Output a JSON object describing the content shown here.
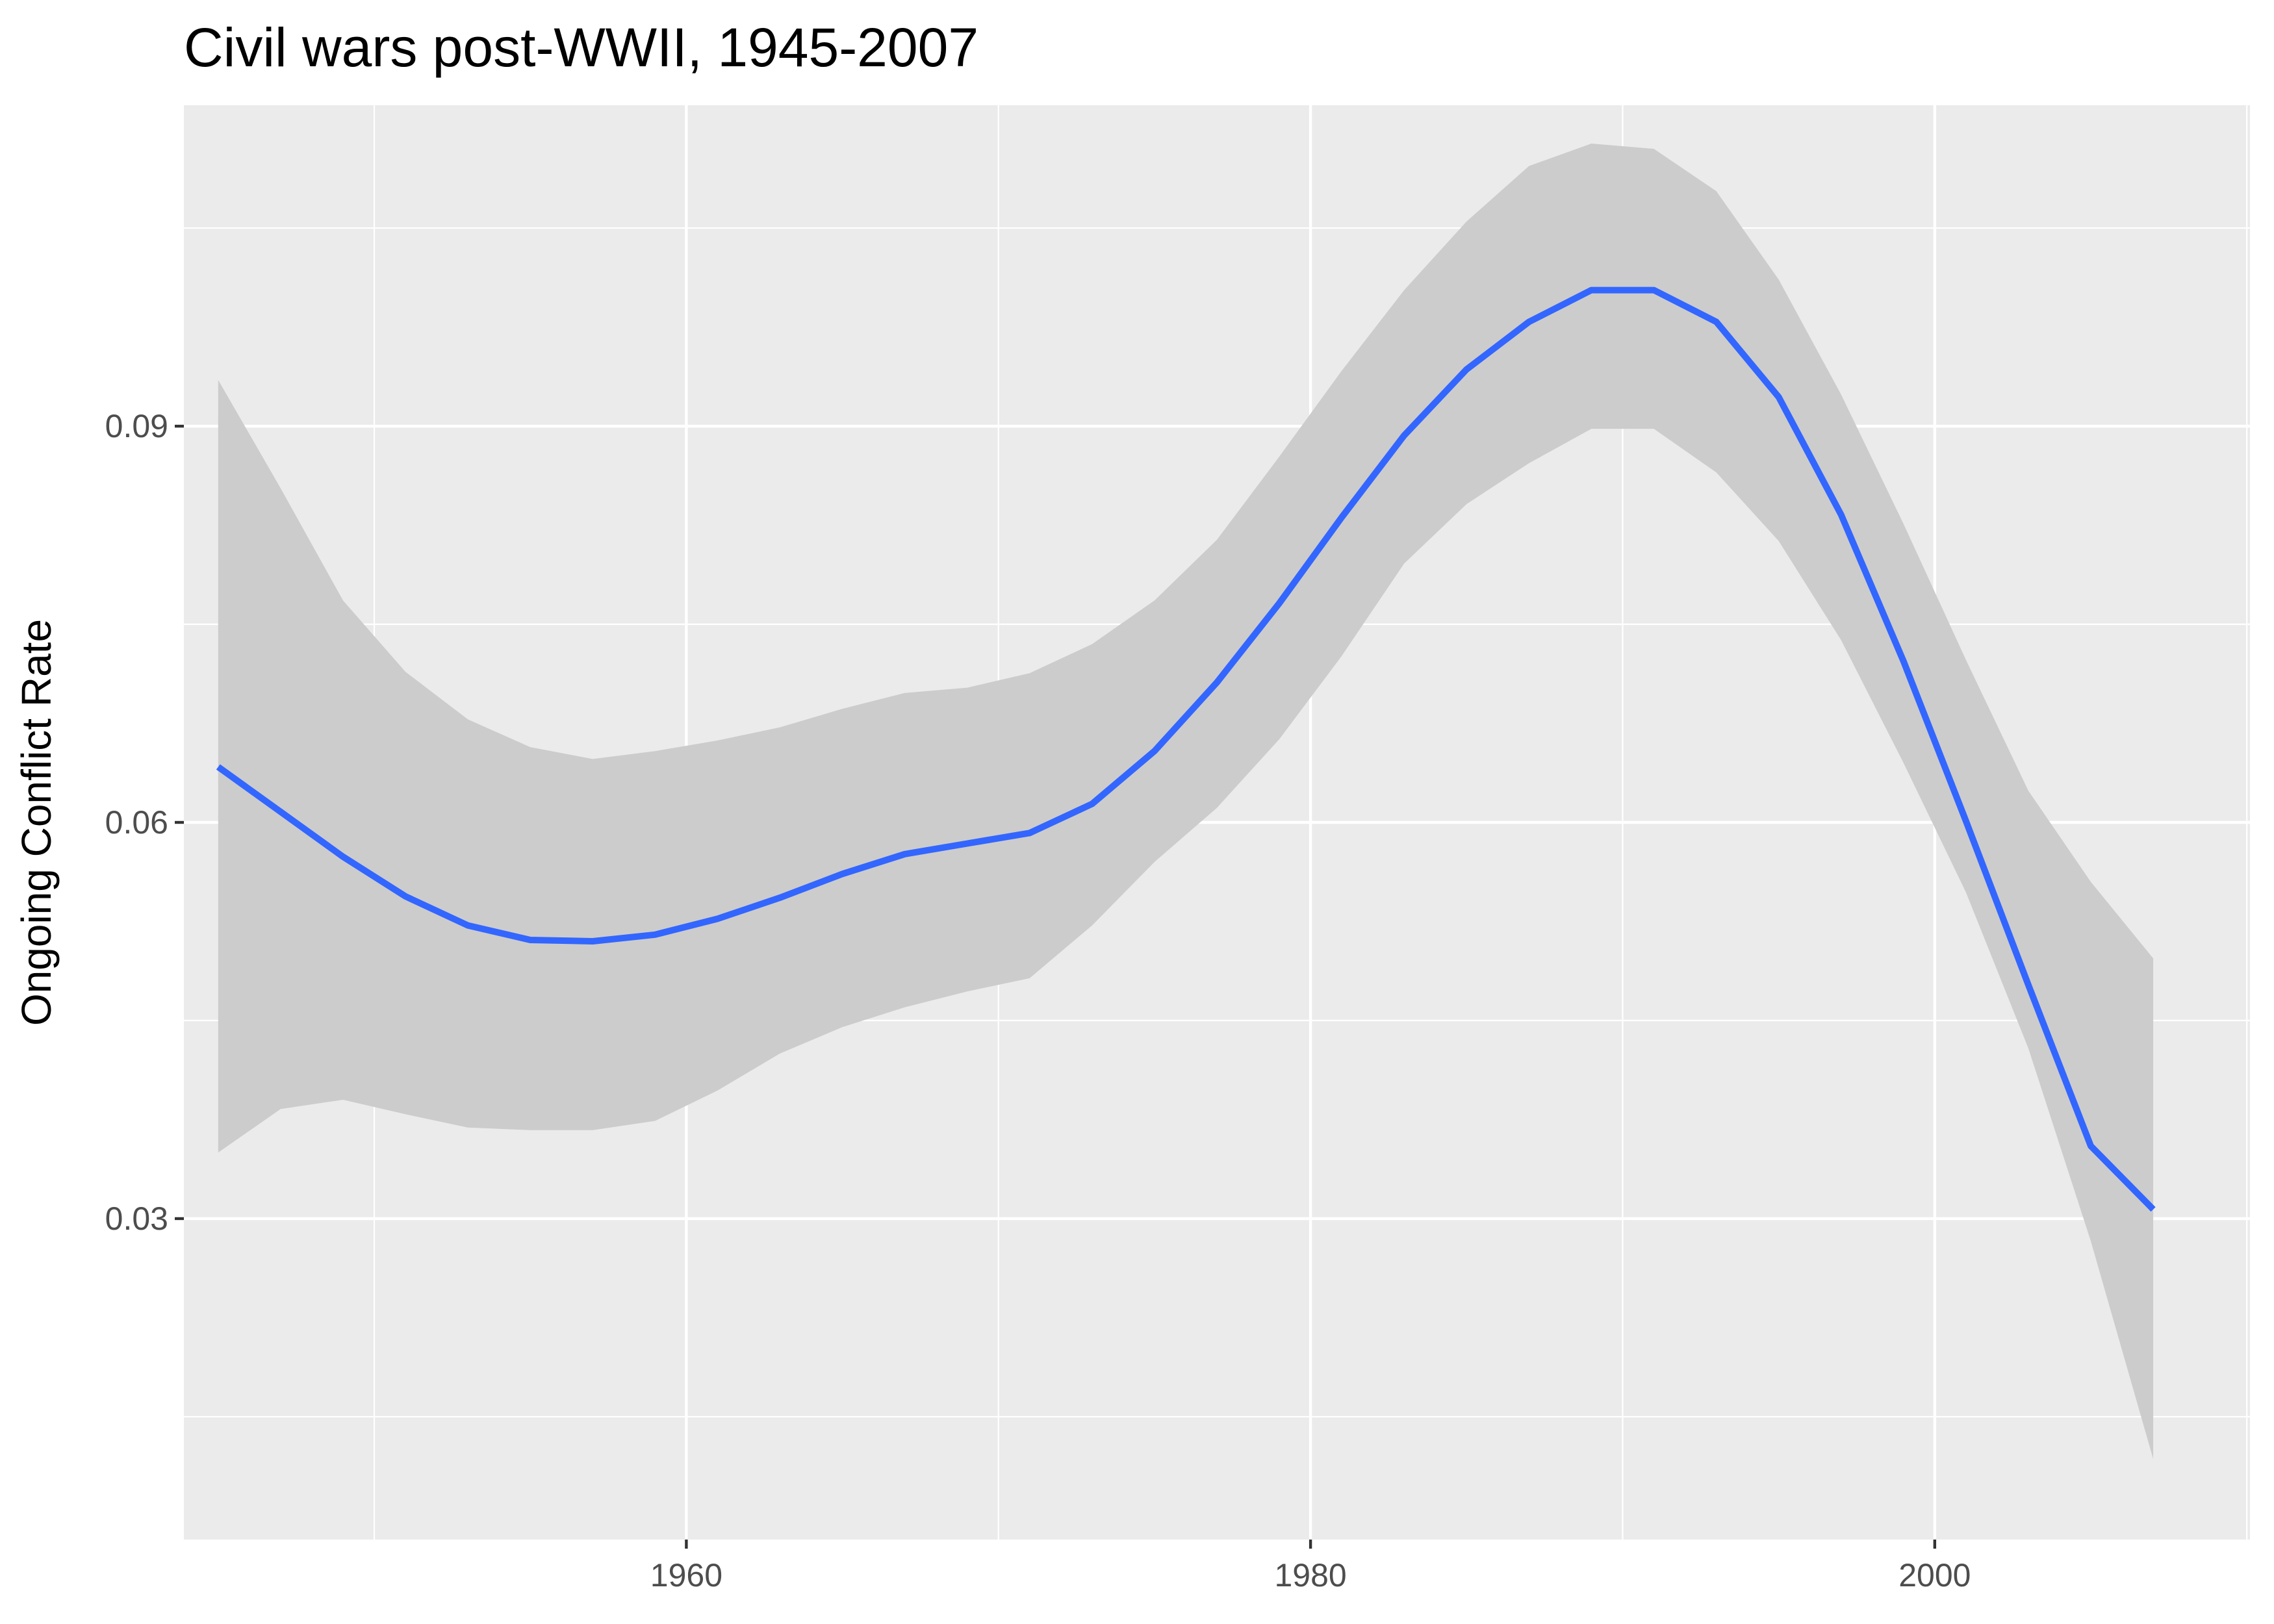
{
  "chart_data": {
    "type": "line",
    "title": "Civil wars post-WWII, 1945-2007",
    "xlabel": "",
    "ylabel": "Ongoing Conflict Rate",
    "xlim": [
      1943.9,
      2010.1
    ],
    "ylim": [
      0.0057,
      0.1143
    ],
    "x_ticks": [
      1960,
      1980,
      2000
    ],
    "x_tick_labels": [
      "1960",
      "1980",
      "2000"
    ],
    "x_minor_ticks": [
      1950,
      1970,
      1990,
      2010
    ],
    "y_ticks": [
      0.03,
      0.06,
      0.09
    ],
    "y_tick_labels": [
      "0.03",
      "0.06",
      "0.09"
    ],
    "y_minor_ticks": [
      0.015,
      0.045,
      0.075,
      0.105
    ],
    "grid": true,
    "legend": "none",
    "series": [
      {
        "x": [
          1945,
          1947,
          1949,
          1951,
          1953,
          1955,
          1957,
          1959,
          1961,
          1963,
          1965,
          1967,
          1969,
          1971,
          1973,
          1975,
          1977,
          1979,
          1981,
          1983,
          1985,
          1987,
          1989,
          1991,
          1993,
          1995,
          1997,
          1999,
          2001,
          2003,
          2005,
          2007
        ],
        "y": [
          0.0642,
          0.0608,
          0.0574,
          0.0544,
          0.0522,
          0.0511,
          0.051,
          0.0515,
          0.0527,
          0.0543,
          0.0561,
          0.0576,
          0.0584,
          0.0592,
          0.0614,
          0.0654,
          0.0706,
          0.0766,
          0.0831,
          0.0893,
          0.0943,
          0.0979,
          0.1003,
          0.1003,
          0.0979,
          0.0922,
          0.0833,
          0.0722,
          0.0601,
          0.0477,
          0.0355,
          0.0307
        ],
        "band_lower": [
          0.035,
          0.0383,
          0.039,
          0.0379,
          0.0369,
          0.0367,
          0.0367,
          0.0374,
          0.0397,
          0.0425,
          0.0445,
          0.046,
          0.0472,
          0.0482,
          0.0522,
          0.057,
          0.0611,
          0.0663,
          0.0726,
          0.0796,
          0.0841,
          0.0872,
          0.0898,
          0.0898,
          0.0865,
          0.0813,
          0.0738,
          0.0645,
          0.0547,
          0.0429,
          0.0283,
          0.0118
        ],
        "band_upper": [
          0.0935,
          0.0853,
          0.0768,
          0.0714,
          0.0678,
          0.0657,
          0.0648,
          0.0654,
          0.0662,
          0.0672,
          0.0686,
          0.0698,
          0.0702,
          0.0713,
          0.0735,
          0.0768,
          0.0814,
          0.0877,
          0.0942,
          0.1003,
          0.1055,
          0.1097,
          0.1114,
          0.111,
          0.1078,
          0.1011,
          0.0924,
          0.0826,
          0.0723,
          0.0624,
          0.0555,
          0.0497
        ]
      }
    ]
  },
  "colors": {
    "panel_background": "#ebebeb",
    "gridline": "#ffffff",
    "line": "#3366ff",
    "ribbon": "#cccccc",
    "tick_label": "#4d4d4d",
    "text": "#000000"
  }
}
